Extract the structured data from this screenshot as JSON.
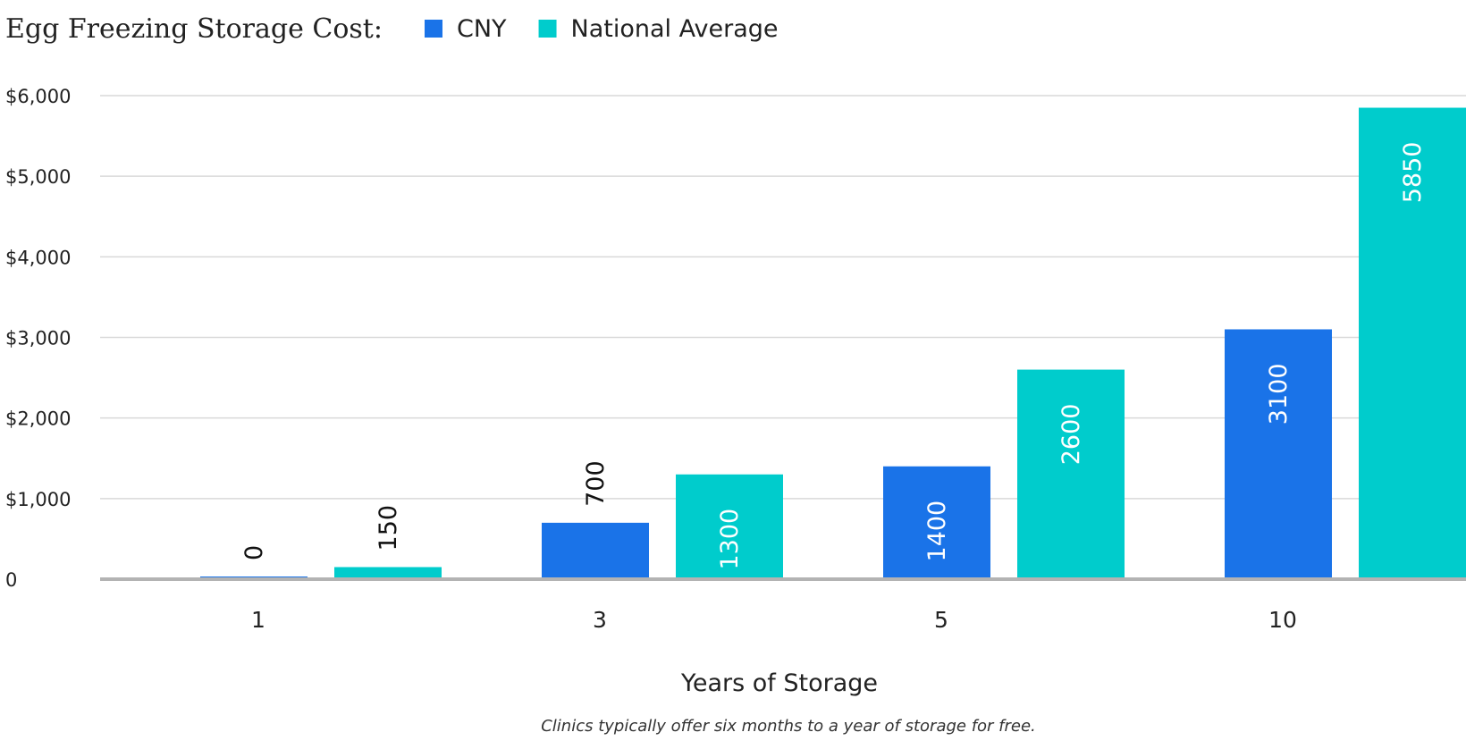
{
  "chart_data": {
    "type": "bar",
    "title": "Egg Freezing Storage Cost:",
    "xlabel": "Years of Storage",
    "ylabel": "",
    "categories": [
      "1",
      "3",
      "5",
      "10"
    ],
    "series": [
      {
        "name": "CNY",
        "values": [
          0,
          700,
          1400,
          3100
        ],
        "color": "#1a73e8"
      },
      {
        "name": "National Average",
        "values": [
          150,
          1300,
          2600,
          5850
        ],
        "color": "#00cccc"
      }
    ],
    "data_labels": {
      "series": [
        [
          "0",
          "700",
          "1400",
          "3100"
        ],
        [
          "150",
          "1300",
          "2600",
          "5850"
        ]
      ]
    },
    "yticks": [
      {
        "value": 0,
        "label": "0"
      },
      {
        "value": 1000,
        "label": "$1,000"
      },
      {
        "value": 2000,
        "label": "$2,000"
      },
      {
        "value": 3000,
        "label": "$3,000"
      },
      {
        "value": 4000,
        "label": "$4,000"
      },
      {
        "value": 5000,
        "label": "$5,000"
      },
      {
        "value": 6000,
        "label": "$6,000"
      }
    ],
    "ylim": [
      0,
      6000
    ],
    "grid": true,
    "legend_position": "top",
    "note": "Clinics typically offer six months to a year of storage for free."
  }
}
